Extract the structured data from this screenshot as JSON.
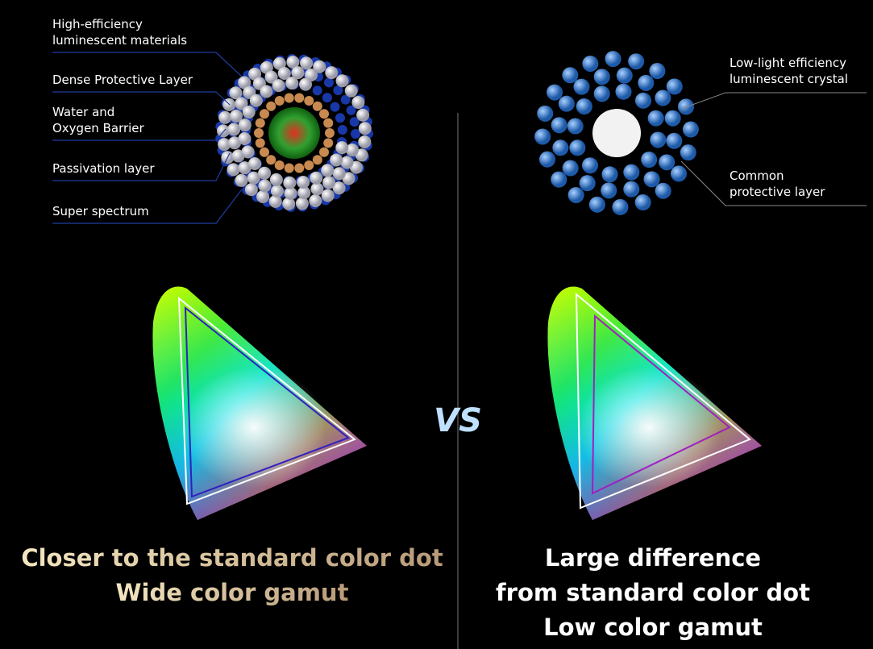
{
  "left": {
    "labels": [
      [
        "High-efficiency",
        "luminescent materials"
      ],
      [
        "Dense Protective Layer"
      ],
      [
        "Water and",
        "Oxygen Barrier"
      ],
      [
        "Passivation layer"
      ],
      [
        "Super spectrum"
      ]
    ],
    "captions": [
      "Closer to the standard color dot",
      "Wide color gamut"
    ]
  },
  "vs": "VS",
  "right": {
    "labels": [
      [
        "Low-light efficiency",
        "luminescent crystal"
      ],
      [
        "Common",
        "protective layer"
      ]
    ],
    "captions": [
      "Large difference",
      "from standard color dot",
      "Low color gamut"
    ]
  }
}
